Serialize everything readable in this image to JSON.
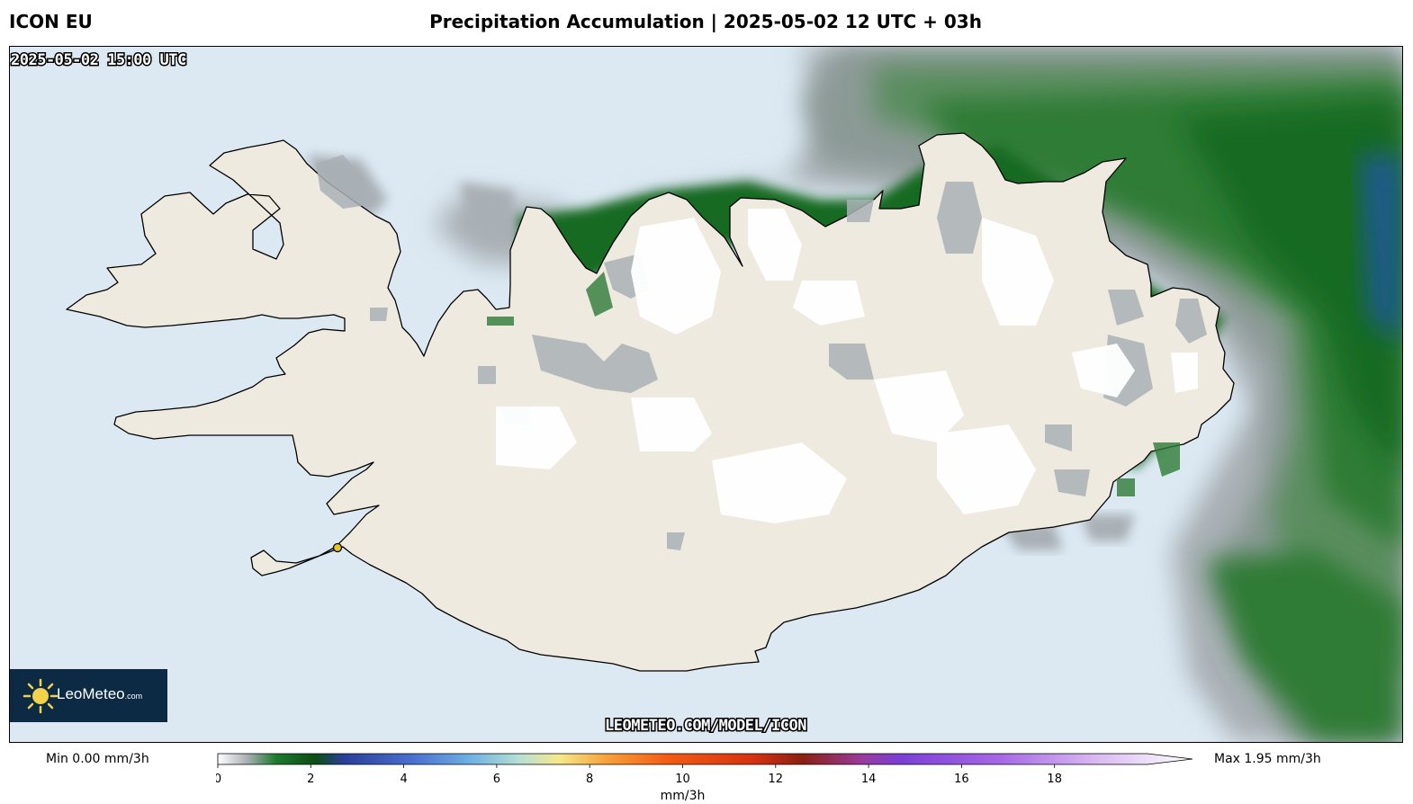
{
  "header": {
    "model": "ICON EU",
    "title": "Precipitation Accumulation | 2025-05-02 12 UTC + 03h"
  },
  "map": {
    "valid_time": "2025-05-02 15:00 UTC",
    "watermark": "LEOMETEO.COM/MODEL/ICON",
    "logo": {
      "name": "LeoMeteo",
      "suffix": ".com",
      "icon": "sun-icon"
    },
    "colors": {
      "sea": "#dce9f3",
      "land": "#efeae0",
      "coast": "#000000",
      "marker": "#e6c52a"
    }
  },
  "legend": {
    "min_label": "Min 0.00 mm/3h",
    "max_label": "Max 1.95 mm/3h",
    "unit": "mm/3h",
    "ticks": [
      "0",
      "2",
      "4",
      "6",
      "8",
      "10",
      "12",
      "14",
      "16",
      "18"
    ],
    "range": [
      0,
      20
    ],
    "stops": [
      {
        "value": 0,
        "color": "#ffffff"
      },
      {
        "value": 0.6,
        "color": "#a9b0b5"
      },
      {
        "value": 1.2,
        "color": "#1c7a2b"
      },
      {
        "value": 2,
        "color": "#0d4d14"
      },
      {
        "value": 2.6,
        "color": "#2a3f9a"
      },
      {
        "value": 4,
        "color": "#4a6fd1"
      },
      {
        "value": 5.2,
        "color": "#6fb2e3"
      },
      {
        "value": 6.2,
        "color": "#b8e0d3"
      },
      {
        "value": 7,
        "color": "#f5e98a"
      },
      {
        "value": 8,
        "color": "#f7a03a"
      },
      {
        "value": 9.2,
        "color": "#f45c13"
      },
      {
        "value": 11,
        "color": "#d63212"
      },
      {
        "value": 12,
        "color": "#8a1f12"
      },
      {
        "value": 13.2,
        "color": "#9a3a9a"
      },
      {
        "value": 14,
        "color": "#7b3fd6"
      },
      {
        "value": 16,
        "color": "#a566e6"
      },
      {
        "value": 18,
        "color": "#d9b8f2"
      },
      {
        "value": 20,
        "color": "#ffffff"
      }
    ]
  }
}
